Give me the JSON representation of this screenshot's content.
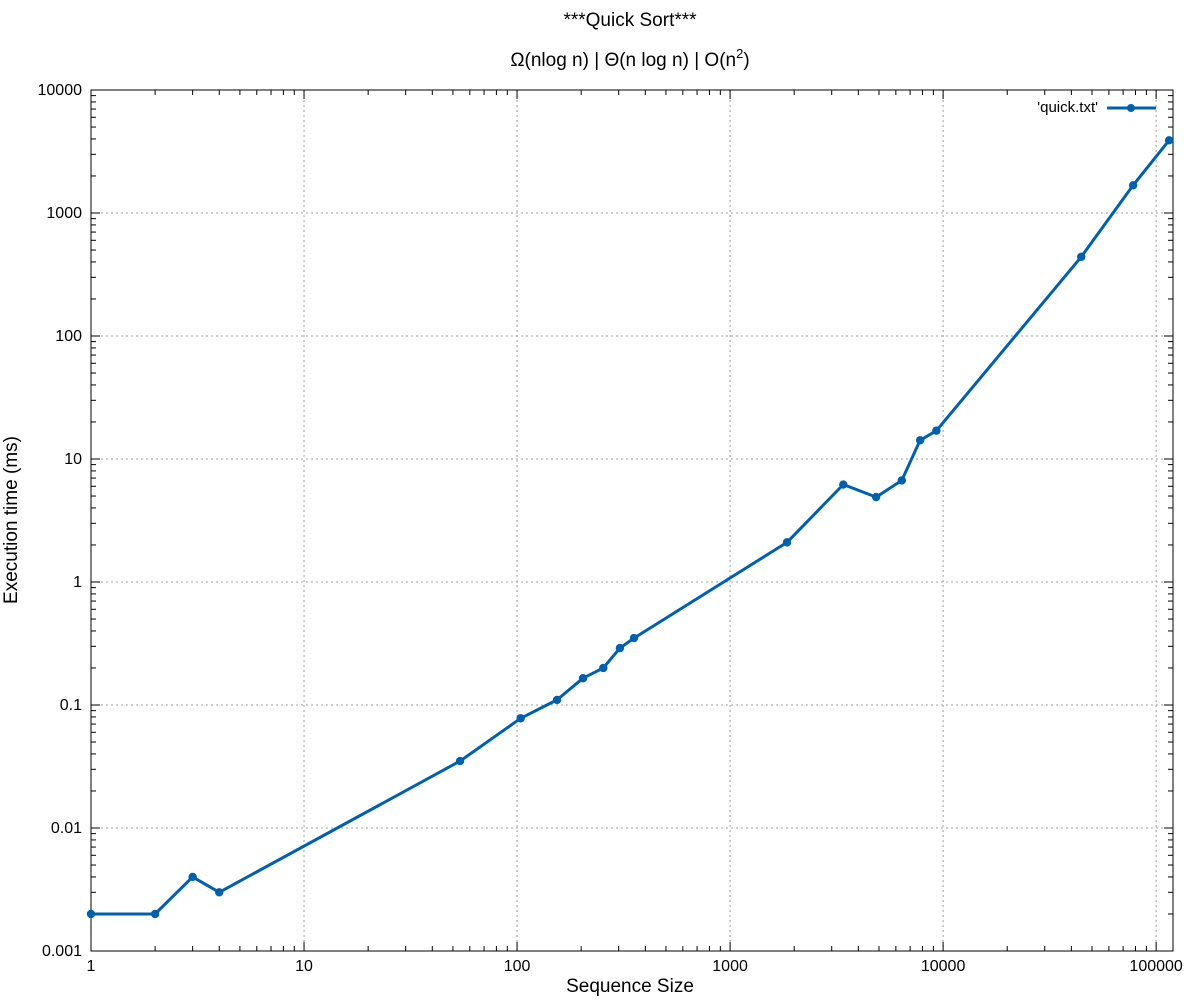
{
  "chart_data": {
    "type": "line",
    "title": "***Quick Sort***",
    "subtitle": {
      "prefix": "Ω(nlog n) | Θ(n log n) | O(n",
      "superscript": "2",
      "suffix": ")"
    },
    "xlabel": "Sequence Size",
    "ylabel": "Execution time (ms)",
    "xscale": "log",
    "yscale": "log",
    "xlim": [
      1,
      120000
    ],
    "ylim": [
      0.001,
      10000
    ],
    "grid": true,
    "legend_position": "top-right",
    "x_ticks": [
      {
        "value": 1,
        "label": "1"
      },
      {
        "value": 10,
        "label": "10"
      },
      {
        "value": 100,
        "label": "100"
      },
      {
        "value": 1000,
        "label": "1000"
      },
      {
        "value": 10000,
        "label": "10000"
      },
      {
        "value": 100000,
        "label": "100000"
      }
    ],
    "y_ticks": [
      {
        "value": 0.001,
        "label": "0.001"
      },
      {
        "value": 0.01,
        "label": "0.01"
      },
      {
        "value": 0.1,
        "label": "0.1"
      },
      {
        "value": 1,
        "label": "1"
      },
      {
        "value": 10,
        "label": "10"
      },
      {
        "value": 100,
        "label": "100"
      },
      {
        "value": 1000,
        "label": "1000"
      },
      {
        "value": 10000,
        "label": "10000"
      }
    ],
    "series": [
      {
        "name": "'quick.txt'",
        "color": "#0060ad",
        "points": [
          {
            "x": 1,
            "y": 0.002
          },
          {
            "x": 2,
            "y": 0.002
          },
          {
            "x": 3,
            "y": 0.004
          },
          {
            "x": 4,
            "y": 0.003
          },
          {
            "x": 54,
            "y": 0.035
          },
          {
            "x": 104,
            "y": 0.078
          },
          {
            "x": 154,
            "y": 0.11
          },
          {
            "x": 204,
            "y": 0.165
          },
          {
            "x": 254,
            "y": 0.2
          },
          {
            "x": 304,
            "y": 0.29
          },
          {
            "x": 354,
            "y": 0.35
          },
          {
            "x": 1850,
            "y": 2.1
          },
          {
            "x": 3400,
            "y": 6.2
          },
          {
            "x": 4850,
            "y": 4.9
          },
          {
            "x": 6400,
            "y": 6.7
          },
          {
            "x": 7800,
            "y": 14.2
          },
          {
            "x": 9300,
            "y": 17
          },
          {
            "x": 44500,
            "y": 440
          },
          {
            "x": 78000,
            "y": 1680
          },
          {
            "x": 115000,
            "y": 3900
          }
        ]
      }
    ]
  }
}
